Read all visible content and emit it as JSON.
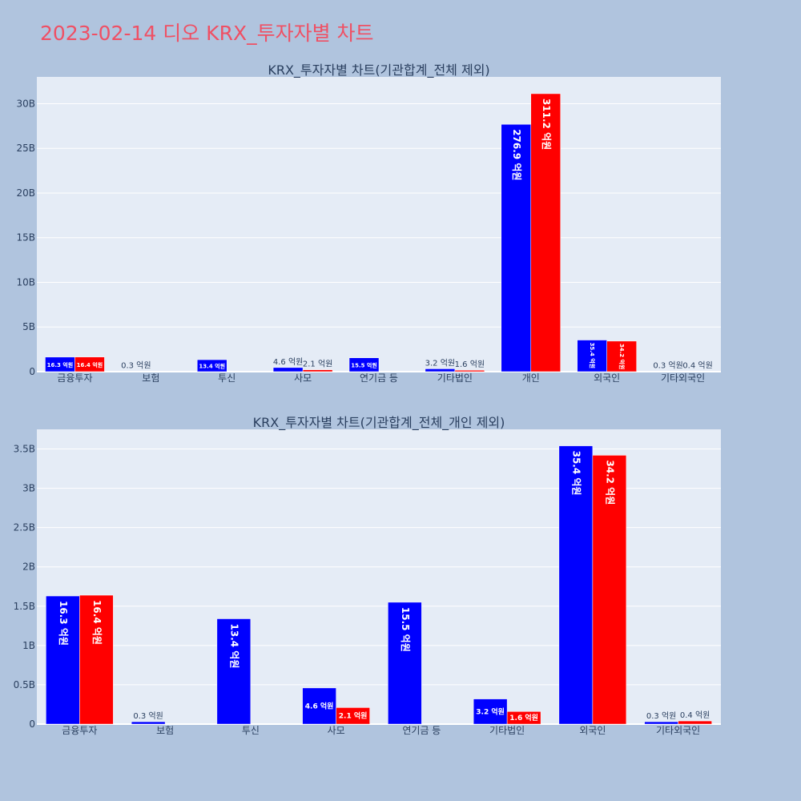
{
  "page": {
    "title": "2023-02-14 디오 KRX_투자자별 차트"
  },
  "colors": {
    "background": "#b0c4de",
    "plot_bg": "#e5ecf6",
    "series_1": "#0000ff",
    "series_2": "#ff0000",
    "title": "#ef5064"
  },
  "chart_data": [
    {
      "type": "bar",
      "title": "KRX_투자자별 차트(기관합계_전체 제외)",
      "categories": [
        "금융투자",
        "보험",
        "투신",
        "사모",
        "연기금 등",
        "기타법인",
        "개인",
        "외국인",
        "기타외국인"
      ],
      "ylim": [
        0,
        33
      ],
      "yticks": [
        0,
        5,
        10,
        15,
        20,
        25,
        30
      ],
      "ytick_labels": [
        "0",
        "5B",
        "10B",
        "15B",
        "20B",
        "25B",
        "30B"
      ],
      "grid": true,
      "legend": "none",
      "series": [
        {
          "values": [
            1.63,
            0.03,
            1.34,
            0.46,
            1.55,
            0.32,
            27.69,
            3.54,
            0.03
          ],
          "labels": [
            "16.3 억원",
            "0.3 억원",
            "13.4 억원",
            "4.6 억원",
            "15.5 억원",
            "3.2 억원",
            "276.9 억원",
            "35.4 억원",
            "0.3 억원"
          ]
        },
        {
          "values": [
            1.64,
            0,
            0,
            0.21,
            0,
            0.16,
            31.12,
            3.42,
            0.04
          ],
          "labels": [
            "16.4 억원",
            "",
            "",
            "2.1 억원",
            "",
            "1.6 억원",
            "311.2 억원",
            "34.2 억원",
            "0.4 억원"
          ]
        }
      ]
    },
    {
      "type": "bar",
      "title": "KRX_투자자별 차트(기관합계_전체_개인 제외)",
      "categories": [
        "금융투자",
        "보험",
        "투신",
        "사모",
        "연기금 등",
        "기타법인",
        "외국인",
        "기타외국인"
      ],
      "ylim": [
        0,
        3.75
      ],
      "yticks": [
        0,
        0.5,
        1,
        1.5,
        2,
        2.5,
        3,
        3.5
      ],
      "ytick_labels": [
        "0",
        "0.5B",
        "1B",
        "1.5B",
        "2B",
        "2.5B",
        "3B",
        "3.5B"
      ],
      "grid": true,
      "legend": "none",
      "series": [
        {
          "values": [
            1.63,
            0.03,
            1.34,
            0.46,
            1.55,
            0.32,
            3.54,
            0.03
          ],
          "labels": [
            "16.3 억원",
            "0.3 억원",
            "13.4 억원",
            "4.6 억원",
            "15.5 억원",
            "3.2 억원",
            "35.4 억원",
            "0.3 억원"
          ]
        },
        {
          "values": [
            1.64,
            0,
            0,
            0.21,
            0,
            0.16,
            3.42,
            0.04
          ],
          "labels": [
            "16.4 억원",
            "",
            "",
            "2.1 억원",
            "",
            "1.6 억원",
            "34.2 억원",
            "0.4 억원"
          ]
        }
      ]
    }
  ]
}
